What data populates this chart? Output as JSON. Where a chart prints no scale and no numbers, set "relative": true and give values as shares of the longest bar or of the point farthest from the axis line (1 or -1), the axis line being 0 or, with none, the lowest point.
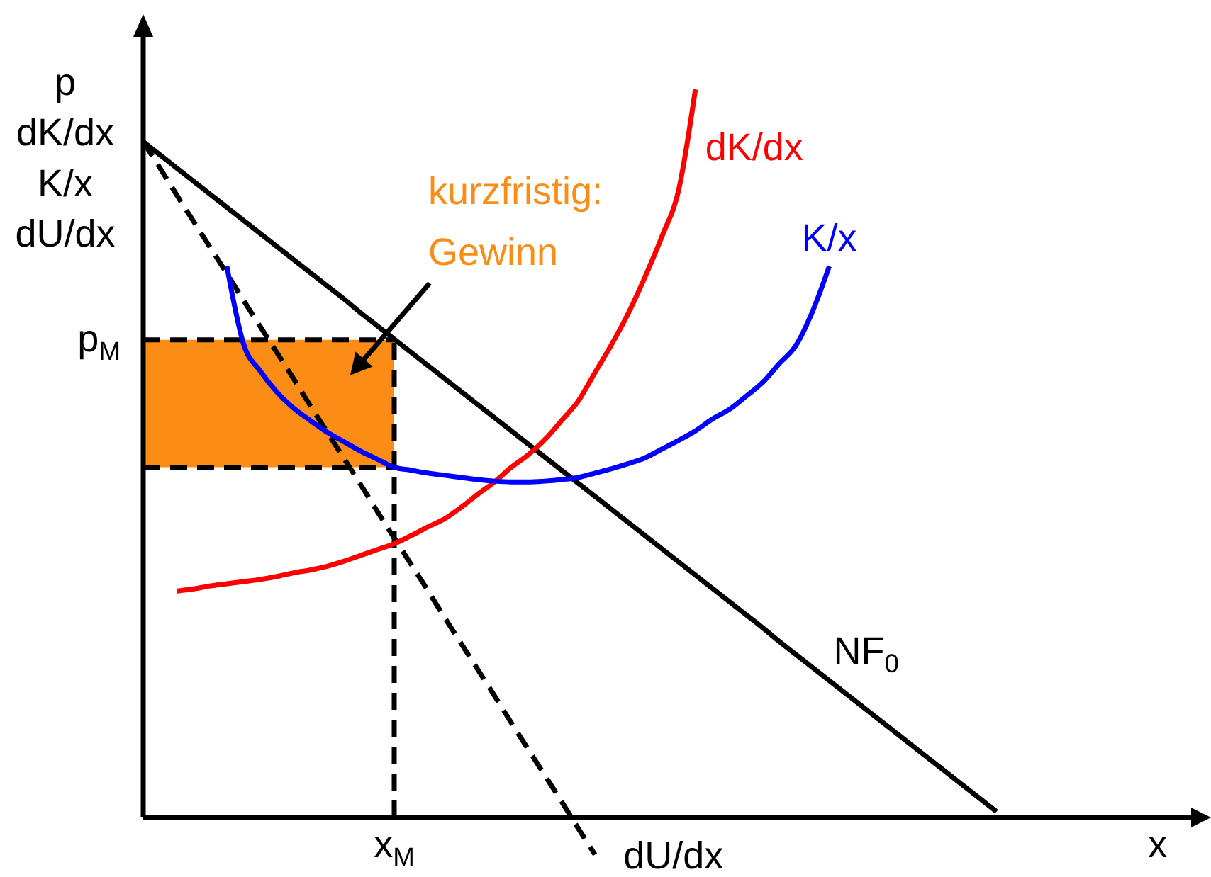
{
  "chart_data": {
    "type": "line",
    "xlabel": "x",
    "ylabel": "p dK/dx K/x dU/dx",
    "relative": true,
    "marker": "none",
    "categories": [
      null,
      null,
      null,
      null,
      null,
      null,
      null,
      null,
      null,
      null,
      null,
      null,
      null,
      null,
      null,
      null,
      null,
      null,
      null,
      null,
      null,
      null,
      null,
      null,
      null,
      null,
      null,
      null,
      null,
      null,
      null,
      null,
      null,
      null,
      null,
      null,
      null,
      null,
      null,
      null,
      null,
      null,
      null,
      null,
      null,
      null,
      null,
      null,
      null,
      null,
      null,
      null,
      null,
      null,
      null,
      null,
      null,
      null,
      null,
      null,
      null,
      null,
      null,
      null
    ],
    "series": [
      {
        "name": "NF$_{0}$",
        "color": "#000000",
        "line_style": "solid",
        "values": [
          0.928,
          0.91,
          0.892,
          0.874,
          0.856,
          0.838,
          0.82,
          0.802,
          0.784,
          0.766,
          0.748,
          0.73,
          0.712,
          0.693,
          0.675,
          0.657,
          0.639,
          0.621,
          0.603,
          0.585,
          0.567,
          0.549,
          0.531,
          0.513,
          0.495,
          0.477,
          0.459,
          0.441,
          0.423,
          0.405,
          0.387,
          0.369,
          0.351,
          0.333,
          0.315,
          0.297,
          0.279,
          0.261,
          0.242,
          0.224,
          0.206,
          0.188,
          0.17,
          0.152,
          0.134,
          0.116,
          0.098,
          0.08,
          0.062,
          0.044,
          0.026,
          0.008,
          null,
          null,
          null,
          null,
          null,
          null,
          null,
          null,
          null,
          null,
          null,
          null
        ]
      },
      {
        "name": "dU/dx",
        "color": "#000000",
        "line_style": "dashed",
        "values": [
          0.928,
          0.892,
          0.855,
          0.819,
          0.783,
          0.747,
          0.71,
          0.674,
          0.638,
          0.602,
          0.565,
          0.529,
          0.493,
          0.457,
          0.42,
          0.384,
          0.348,
          0.312,
          0.275,
          0.239,
          0.203,
          0.167,
          0.13,
          0.094,
          0.058,
          0.022,
          -0.015,
          -0.051,
          null,
          null,
          null,
          null,
          null,
          null,
          null,
          null,
          null,
          null,
          null,
          null,
          null,
          null,
          null,
          null,
          null,
          null,
          null,
          null,
          null,
          null,
          null,
          null,
          null,
          null,
          null,
          null,
          null,
          null,
          null,
          null,
          null,
          null,
          null,
          null
        ]
      },
      {
        "name": "dK/dx",
        "color": "#ff0000",
        "line_style": "solid",
        "values": [
          null,
          null,
          0.311,
          0.314,
          0.318,
          0.321,
          0.324,
          0.327,
          0.331,
          0.336,
          0.34,
          0.345,
          0.352,
          0.36,
          0.368,
          0.376,
          0.387,
          0.399,
          0.41,
          0.426,
          0.444,
          0.461,
          0.481,
          0.498,
          0.519,
          0.545,
          0.572,
          0.611,
          0.65,
          0.693,
          0.743,
          0.798,
          0.862,
          1.0,
          null,
          null,
          null,
          null,
          null,
          null,
          null,
          null,
          null,
          null,
          null,
          null,
          null,
          null,
          null,
          null,
          null,
          null,
          null,
          null,
          null,
          null,
          null,
          null,
          null,
          null,
          null,
          null,
          null,
          null
        ]
      },
      {
        "name": "K/x",
        "color": "#0000ff",
        "line_style": "solid",
        "values": [
          null,
          null,
          null,
          null,
          null,
          0.757,
          0.65,
          0.613,
          0.584,
          0.562,
          0.545,
          0.529,
          0.516,
          0.503,
          0.492,
          0.481,
          0.477,
          0.473,
          0.47,
          0.467,
          0.464,
          0.462,
          0.461,
          0.461,
          0.462,
          0.464,
          0.467,
          0.473,
          0.479,
          0.486,
          0.494,
          0.506,
          0.518,
          0.531,
          0.547,
          0.56,
          0.578,
          0.597,
          0.623,
          0.648,
          0.695,
          0.757,
          null,
          null,
          null,
          null,
          null,
          null,
          null,
          null,
          null,
          null,
          null,
          null,
          null,
          null,
          null,
          null,
          null,
          null,
          null,
          null,
          null,
          null
        ]
      }
    ],
    "ref_lines": [
      {
        "axis": "y",
        "value": 0.656,
        "label": "p$_{M}$",
        "color": "#000000",
        "line_style": "dashed"
      },
      {
        "axis": "y",
        "value": 0.481,
        "color": "#000000",
        "line_style": "dashed"
      }
    ],
    "bands": [
      {
        "axis": "y",
        "from": 0.481,
        "to": 0.656,
        "label": "kurzfristig: Gewinn",
        "color": "#fb8c15"
      }
    ],
    "annotations": [
      "x$_{M}$"
    ]
  }
}
